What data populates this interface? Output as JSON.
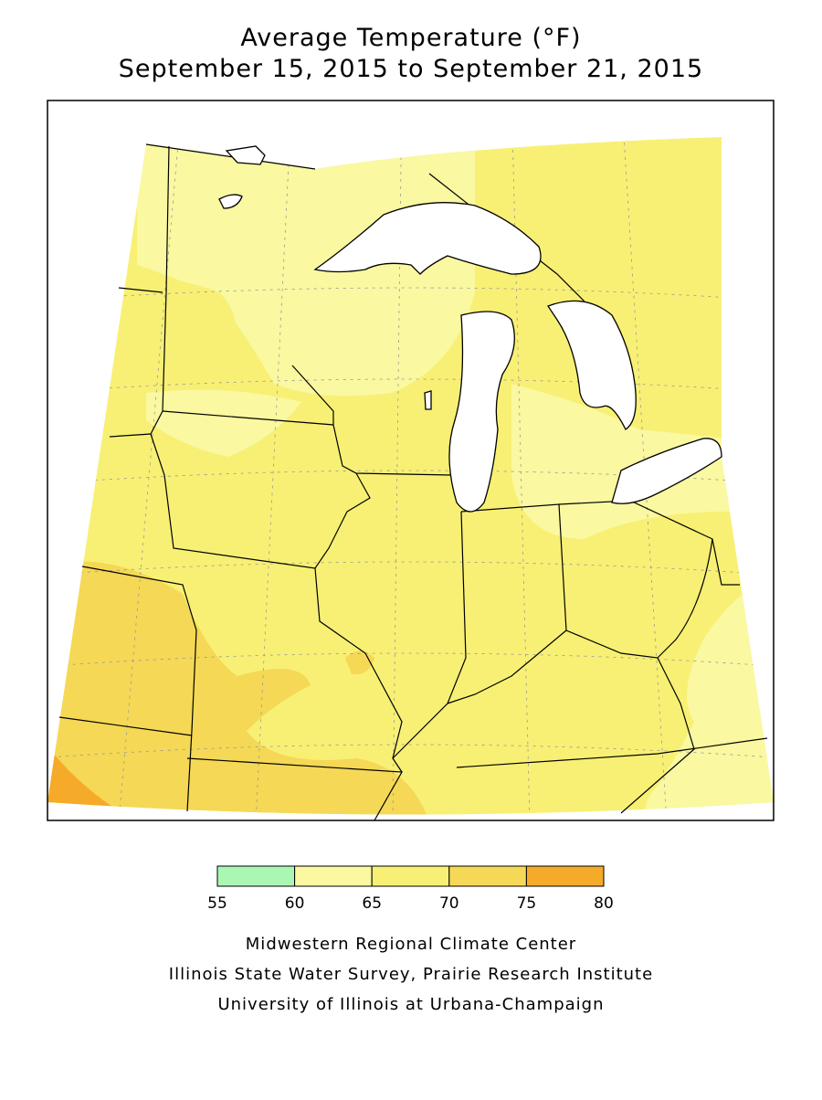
{
  "title": [
    "Average Temperature (°F)",
    "September 15, 2015 to September 21, 2015"
  ],
  "legend": {
    "bins": [
      55,
      60,
      65,
      70,
      75,
      80
    ],
    "colors": [
      "#aaf7b4",
      "#faf8a0",
      "#f7f074",
      "#f5d855",
      "#f6aa2a"
    ]
  },
  "credits": [
    "Midwestern Regional Climate Center",
    "Illinois State Water Survey, Prairie Research Institute",
    "University of Illinois at Urbana-Champaign"
  ]
}
